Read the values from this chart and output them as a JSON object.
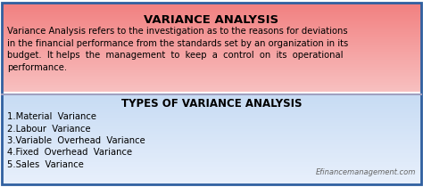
{
  "title": "VARIANCE ANALYSIS",
  "body_text": "Variance Analysis refers to the investigation as to the reasons for deviations\nin the financial performance from the standards set by an organization in its\nbudget.  It helps  the  management  to  keep  a  control  on  its  operational\nperformance.",
  "section2_title": "TYPES OF VARIANCE ANALYSIS",
  "list_items": [
    "1.Material  Variance",
    "2.Labour  Variance",
    "3.Variable  Overhead  Variance",
    "4.Fixed  Overhead  Variance",
    "5.Sales  Variance"
  ],
  "watermark": "Efinancemanagement.com",
  "top_bg_top_color": "#f28080",
  "top_bg_bottom_color": "#f8c0c0",
  "bottom_bg_top_color": "#dce8f8",
  "bottom_bg_bottom_color": "#eef3fc",
  "border_color": "#a0a0c0",
  "outer_border_color": "#3060a0",
  "title_fontsize": 9.5,
  "body_fontsize": 7.2,
  "section2_title_fontsize": 8.5,
  "list_fontsize": 7.2,
  "watermark_fontsize": 6,
  "fig_width": 4.74,
  "fig_height": 2.1,
  "dpi": 100
}
